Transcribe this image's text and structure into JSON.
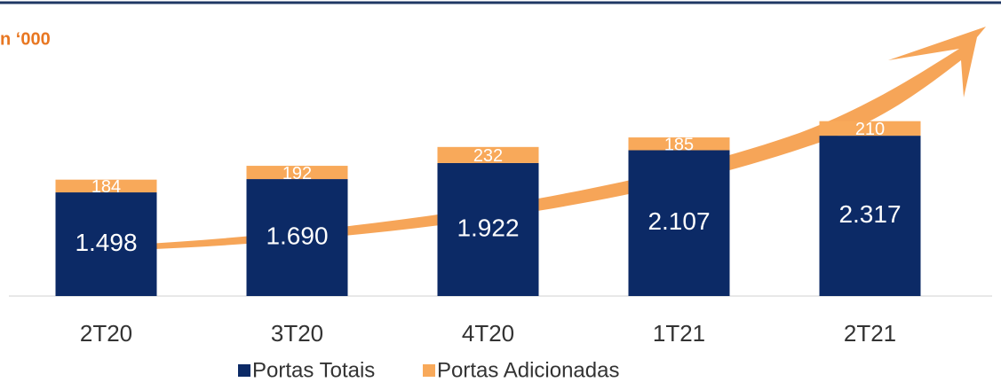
{
  "chart_data": {
    "type": "bar",
    "stacked": true,
    "title": "n ‘000",
    "categories": [
      "2T20",
      "3T20",
      "4T20",
      "1T21",
      "2T21"
    ],
    "series": [
      {
        "name": "Portas Totais",
        "color": "#0c2a66",
        "values": [
          1498,
          1690,
          1922,
          2107,
          2317
        ],
        "value_labels": [
          "1.498",
          "1.690",
          "1.922",
          "2.107",
          "2.317"
        ]
      },
      {
        "name": "Portas Adicionadas",
        "color": "#f8a95a",
        "values": [
          184,
          192,
          232,
          185,
          210
        ]
      }
    ],
    "ylim": [
      0,
      2600
    ],
    "grid": false,
    "legend": "bottom"
  }
}
